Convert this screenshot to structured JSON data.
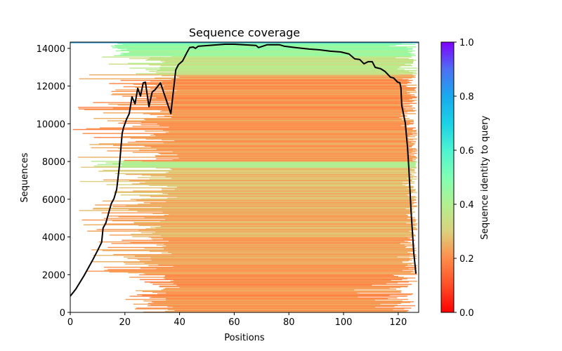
{
  "chart_data": {
    "type": "heatmap",
    "title": "Sequence coverage",
    "xlabel": "Positions",
    "ylabel": "Sequences",
    "xlim": [
      0,
      127.5
    ],
    "ylim": [
      0,
      14330
    ],
    "xticks": [
      0,
      20,
      40,
      60,
      80,
      100,
      120
    ],
    "yticks": [
      0,
      2000,
      4000,
      6000,
      8000,
      10000,
      12000,
      14000
    ],
    "grid": false,
    "colorbar": {
      "label": "Sequence identity to query",
      "colormap": "rainbow_r",
      "range": [
        0,
        1
      ],
      "ticks": [
        0.0,
        0.2,
        0.4,
        0.6,
        0.8,
        1.0
      ],
      "tick_labels": [
        "0.0",
        "0.2",
        "0.4",
        "0.6",
        "0.8",
        "1.0"
      ],
      "placement": "right"
    },
    "identity_bands": [
      {
        "seq_from": 0,
        "seq_to": 2000,
        "identity": 0.21,
        "pos_start_min": 14,
        "pos_start_max": 40,
        "pos_end_min": 95,
        "pos_end_max": 127
      },
      {
        "seq_from": 2000,
        "seq_to": 4000,
        "identity": 0.23,
        "pos_start_min": 4,
        "pos_start_max": 38,
        "pos_end_min": 115,
        "pos_end_max": 127
      },
      {
        "seq_from": 4000,
        "seq_to": 6000,
        "identity": 0.25,
        "pos_start_min": 0,
        "pos_start_max": 38,
        "pos_end_min": 120,
        "pos_end_max": 127
      },
      {
        "seq_from": 6000,
        "seq_to": 7700,
        "identity": 0.27,
        "pos_start_min": 0,
        "pos_start_max": 40,
        "pos_end_min": 120,
        "pos_end_max": 127
      },
      {
        "seq_from": 7700,
        "seq_to": 8000,
        "identity": 0.4,
        "pos_start_min": 3,
        "pos_start_max": 20,
        "pos_end_min": 125,
        "pos_end_max": 127
      },
      {
        "seq_from": 8000,
        "seq_to": 12600,
        "identity": 0.22,
        "pos_start_min": 0,
        "pos_start_max": 40,
        "pos_end_min": 118,
        "pos_end_max": 127
      },
      {
        "seq_from": 12600,
        "seq_to": 13600,
        "identity": 0.36,
        "pos_start_min": 10,
        "pos_start_max": 40,
        "pos_end_min": 115,
        "pos_end_max": 127
      },
      {
        "seq_from": 13600,
        "seq_to": 14300,
        "identity": 0.45,
        "pos_start_min": 10,
        "pos_start_max": 22,
        "pos_end_min": 115,
        "pos_end_max": 127
      }
    ],
    "series": [
      {
        "name": "coverage",
        "color": "#000000",
        "x": [
          0,
          2,
          5,
          8,
          10,
          11.5,
          12,
          13,
          15,
          16,
          17,
          18,
          19,
          19.5,
          20.6,
          21.6,
          22.6,
          23.7,
          24.7,
          25.7,
          26.7,
          27.5,
          28.8,
          30,
          31,
          33,
          36.8,
          38.6,
          39.6,
          41.1,
          42.7,
          43.7,
          45,
          45.8,
          46.8,
          56.6,
          60,
          68,
          68.9,
          72,
          76.6,
          78.4,
          82.3,
          87.4,
          91.3,
          95.1,
          99,
          102,
          104.1,
          105.9,
          107.5,
          109,
          110.5,
          111.6,
          113.6,
          115.2,
          117.2,
          118.3,
          119.8,
          120.6,
          121,
          121.3,
          122.6,
          123.4,
          123.9,
          124.7,
          125.7,
          126.5
        ],
        "y": [
          860,
          1230,
          1940,
          2720,
          3280,
          3720,
          4470,
          4730,
          5770,
          6030,
          6520,
          7780,
          9490,
          9800,
          10240,
          10540,
          11430,
          11060,
          11880,
          11470,
          12170,
          12200,
          10910,
          11690,
          11800,
          12170,
          10540,
          12860,
          13140,
          13330,
          13780,
          14040,
          14070,
          14000,
          14110,
          14220,
          14220,
          14150,
          14040,
          14190,
          14190,
          14110,
          14040,
          13960,
          13920,
          13850,
          13810,
          13700,
          13440,
          13410,
          13180,
          13290,
          13290,
          12990,
          12920,
          12770,
          12470,
          12430,
          12210,
          12170,
          11910,
          10980,
          10050,
          8750,
          7630,
          5400,
          3160,
          2050
        ]
      }
    ]
  }
}
